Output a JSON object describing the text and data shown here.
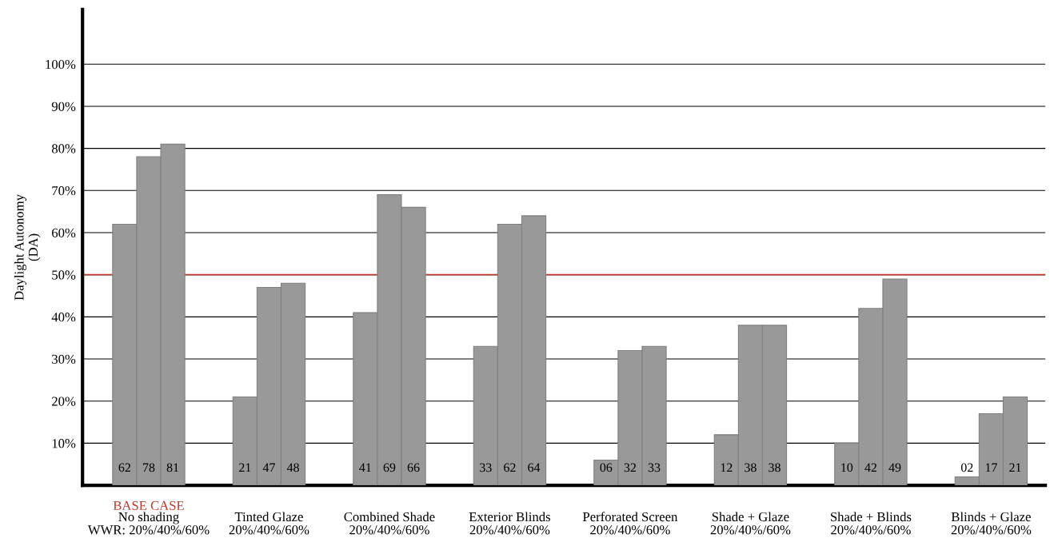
{
  "chart_data": {
    "type": "bar",
    "ylabel": "Daylight Autonomy\n(DA)",
    "categories": [
      "No shading\nWWR: 20%/40%/60%",
      "Tinted Glaze\n20%/40%/60%",
      "Combined Shade\n20%/40%/60%",
      "Exterior Blinds\n20%/40%/60%",
      "Perforated Screen\n20%/40%/60%",
      "Shade + Glaze\n20%/40%/60%",
      "Shade + Blinds\n20%/40%/60%",
      "Blinds + Glaze\n20%/40%/60%"
    ],
    "series": [
      {
        "color": "#999999",
        "values": [
          62,
          21,
          41,
          33,
          6,
          12,
          10,
          2
        ],
        "value_labels": [
          "62",
          "21",
          "41",
          "33",
          "06",
          "12",
          "10",
          "02"
        ]
      },
      {
        "color": "#999999",
        "values": [
          78,
          47,
          69,
          62,
          32,
          38,
          42,
          17
        ],
        "value_labels": [
          "78",
          "47",
          "69",
          "62",
          "32",
          "38",
          "42",
          "17"
        ]
      },
      {
        "color": "#999999",
        "values": [
          81,
          48,
          66,
          64,
          33,
          38,
          49,
          21
        ],
        "value_labels": [
          "81",
          "48",
          "66",
          "64",
          "33",
          "38",
          "49",
          "21"
        ]
      }
    ],
    "ylim": [
      0,
      113
    ],
    "yticks": [
      {
        "value": 10,
        "label": "10%"
      },
      {
        "value": 20,
        "label": "20%"
      },
      {
        "value": 30,
        "label": "30%"
      },
      {
        "value": 40,
        "label": "40%"
      },
      {
        "value": 50,
        "label": "50%"
      },
      {
        "value": 60,
        "label": "60%"
      },
      {
        "value": 70,
        "label": "70%"
      },
      {
        "value": 80,
        "label": "80%"
      },
      {
        "value": 90,
        "label": "90%"
      },
      {
        "value": 100,
        "label": "100%"
      }
    ],
    "grid": "y",
    "ref_lines": [
      {
        "axis": "y",
        "value": 50,
        "color": "#c0392b"
      }
    ],
    "annotations": [
      "BASE CASE"
    ]
  }
}
